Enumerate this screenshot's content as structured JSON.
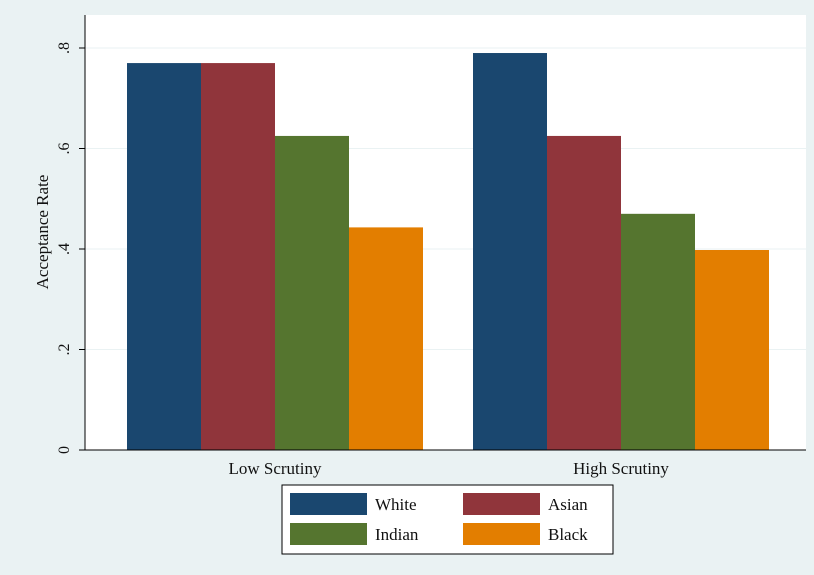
{
  "chart_data": {
    "type": "bar",
    "title": "",
    "xlabel": "",
    "ylabel": "Acceptance Rate",
    "categories": [
      "Low Scrutiny",
      "High Scrutiny"
    ],
    "series": [
      {
        "name": "White",
        "color": "#1a476f",
        "values": [
          0.77,
          0.79
        ]
      },
      {
        "name": "Asian",
        "color": "#90353b",
        "values": [
          0.77,
          0.625
        ]
      },
      {
        "name": "Indian",
        "color": "#55752f",
        "values": [
          0.625,
          0.47
        ]
      },
      {
        "name": "Black",
        "color": "#e37e00",
        "values": [
          0.443,
          0.398
        ]
      }
    ],
    "ylim": [
      0,
      0.8
    ],
    "yticks": [
      0,
      0.2,
      0.4,
      0.6,
      0.8
    ],
    "ytick_labels": [
      "0",
      ".2",
      ".4",
      ".6",
      ".8"
    ],
    "grid": true,
    "legend_position": "bottom"
  },
  "colors": {
    "outer_background": "#eaf2f3",
    "plot_background": "#ffffff",
    "grid": "#eaf2f3"
  }
}
